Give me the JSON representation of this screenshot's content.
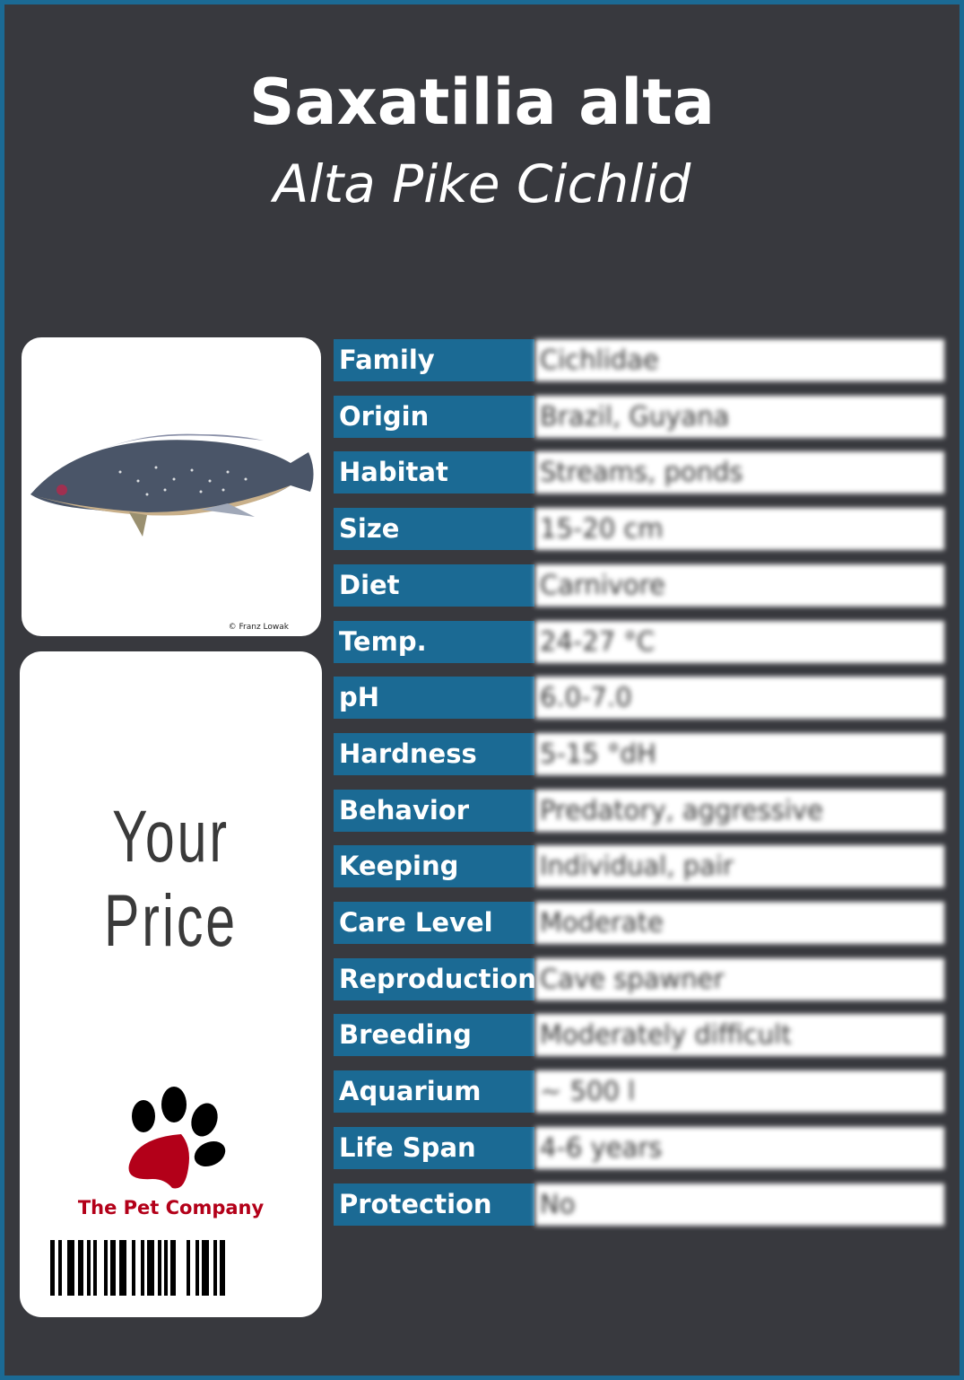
{
  "header": {
    "scientific_name": "Saxatilia alta",
    "common_name": "Alta Pike Cichlid"
  },
  "photo": {
    "credit": "© Franz Lowak",
    "icon": "fish-photo"
  },
  "price": {
    "label": "Your Price"
  },
  "brand": {
    "name": "The Pet Company",
    "icon": "paw-logo",
    "color": "#b30019"
  },
  "colors": {
    "border": "#1b6a94",
    "background": "#38393e",
    "label_bg": "#1b6a94"
  },
  "rows": [
    {
      "label": "Family",
      "value": "Cichlidae"
    },
    {
      "label": "Origin",
      "value": "Brazil, Guyana"
    },
    {
      "label": "Habitat",
      "value": "Streams, ponds"
    },
    {
      "label": "Size",
      "value": "15-20 cm"
    },
    {
      "label": "Diet",
      "value": "Carnivore"
    },
    {
      "label": "Temp.",
      "value": "24-27 °C"
    },
    {
      "label": "pH",
      "value": "6.0-7.0"
    },
    {
      "label": "Hardness",
      "value": "5-15 °dH"
    },
    {
      "label": "Behavior",
      "value": "Predatory, aggressive"
    },
    {
      "label": "Keeping",
      "value": "Individual, pair"
    },
    {
      "label": "Care Level",
      "value": "Moderate"
    },
    {
      "label": "Reproduction",
      "value": "Cave spawner"
    },
    {
      "label": "Breeding",
      "value": "Moderately difficult"
    },
    {
      "label": "Aquarium",
      "value": "~ 500 l"
    },
    {
      "label": "Life Span",
      "value": "4-6 years"
    },
    {
      "label": "Protection",
      "value": "No"
    }
  ]
}
